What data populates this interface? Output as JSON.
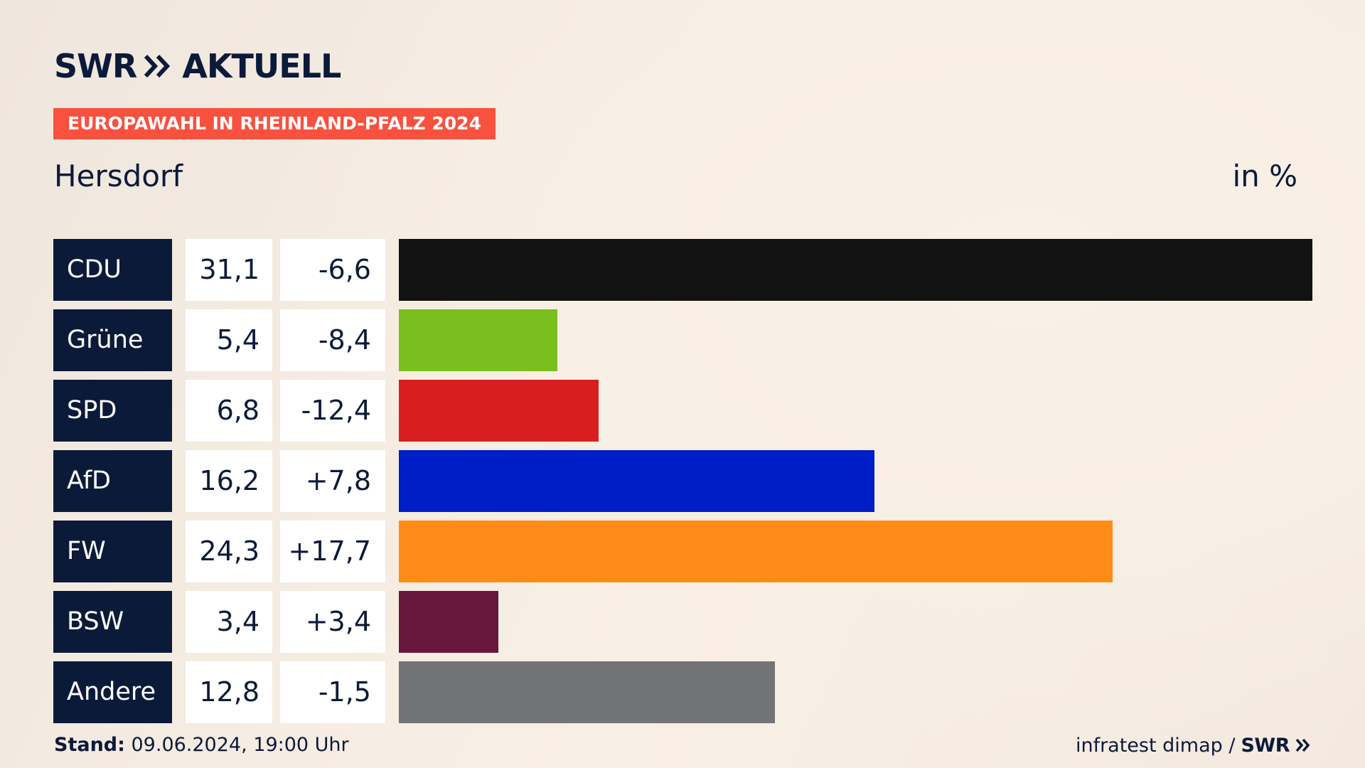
{
  "header": {
    "logo_brand": "SWR",
    "logo_suffix": "AKTUELL",
    "election_badge": "EUROPAWAHL IN RHEINLAND-PFALZ 2024",
    "place": "Hersdorf",
    "unit": "in %"
  },
  "colors": {
    "navy": "#0c1a3a",
    "badge": "#f8513f"
  },
  "chart_data": {
    "type": "bar",
    "orientation": "horizontal",
    "categories": [
      "CDU",
      "Grüne",
      "SPD",
      "AfD",
      "FW",
      "BSW",
      "Andere"
    ],
    "values": [
      31.1,
      5.4,
      6.8,
      16.2,
      24.3,
      3.4,
      12.8
    ],
    "value_labels": [
      "31,1",
      "5,4",
      "6,8",
      "16,2",
      "24,3",
      "3,4",
      "12,8"
    ],
    "diff_values": [
      -6.6,
      -8.4,
      -12.4,
      7.8,
      17.7,
      3.4,
      -1.5
    ],
    "diff_labels": [
      "-6,6",
      "-8,4",
      "-12,4",
      "+7,8",
      "+17,7",
      "+3,4",
      "-1,5"
    ],
    "bar_colors": [
      "#121212",
      "#7abf1e",
      "#d71f1f",
      "#001ec8",
      "#ff8c19",
      "#68173c",
      "#727374"
    ],
    "title": "Hersdorf",
    "unit": "in %",
    "xlim": [
      0,
      31.1
    ]
  },
  "footer": {
    "stand_label": "Stand:",
    "stand_value": " 09.06.2024, 19:00 Uhr",
    "source": "infratest dimap /",
    "source_brand": "SWR"
  }
}
